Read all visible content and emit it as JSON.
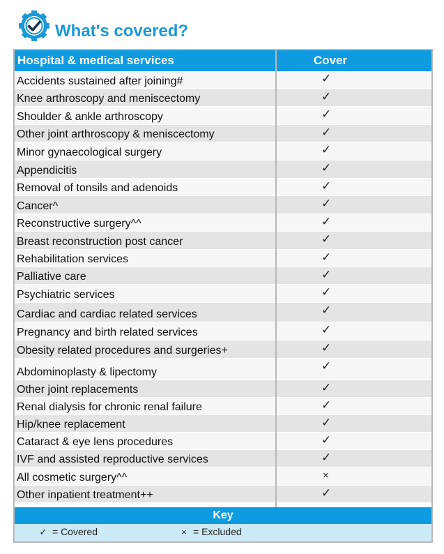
{
  "header": {
    "title": "What's covered?",
    "icon": "check-badge-icon",
    "accent_color": "#1a9ad8"
  },
  "table": {
    "columns": {
      "services": "Hospital & medical services",
      "cover": "Cover"
    },
    "rows": [
      {
        "service": "Accidents sustained after joining#",
        "cover": "✓"
      },
      {
        "service": "Knee arthroscopy and meniscectomy",
        "cover": "✓"
      },
      {
        "service": "Shoulder & ankle arthroscopy",
        "cover": "✓"
      },
      {
        "service": "Other joint arthroscopy & meniscectomy",
        "cover": "✓"
      },
      {
        "service": "Minor gynaecological surgery",
        "cover": "✓"
      },
      {
        "service": "Appendicitis",
        "cover": "✓"
      },
      {
        "service": "Removal of tonsils and adenoids",
        "cover": "✓"
      },
      {
        "service": "Cancer^",
        "cover": "✓"
      },
      {
        "service": "Reconstructive surgery^^",
        "cover": "✓"
      },
      {
        "service": "Breast reconstruction post cancer",
        "cover": "✓"
      },
      {
        "service": "Rehabilitation services",
        "cover": "✓"
      },
      {
        "service": "Palliative care",
        "cover": "✓"
      },
      {
        "service": "Psychiatric services",
        "cover": "✓"
      },
      {
        "service": "Cardiac and cardiac related services",
        "cover": "✓"
      },
      {
        "service": "Pregnancy and birth related services",
        "cover": "✓"
      },
      {
        "service": "Obesity related procedures and surgeries+",
        "cover": "✓"
      },
      {
        "service": "Abdominoplasty & lipectomy",
        "cover": "✓"
      },
      {
        "service": "Other joint replacements",
        "cover": "✓"
      },
      {
        "service": "Renal dialysis for chronic renal failure",
        "cover": "✓"
      },
      {
        "service": "Hip/knee replacement",
        "cover": "✓"
      },
      {
        "service": "Cataract & eye lens procedures",
        "cover": "✓"
      },
      {
        "service": "IVF and assisted reproductive services",
        "cover": "✓"
      },
      {
        "service": "All cosmetic surgery^^",
        "cover": "×"
      },
      {
        "service": "Other inpatient treatment++",
        "cover": "✓"
      }
    ]
  },
  "key": {
    "title": "Key",
    "covered": {
      "symbol": "✓",
      "label": "= Covered"
    },
    "excluded": {
      "symbol": "×",
      "label": "= Excluded"
    }
  },
  "colors": {
    "header_blue": "#0e9be0",
    "row_dark": "#e4e4e4",
    "row_light": "#f6f6f6",
    "key_background": "#cce9f6"
  }
}
